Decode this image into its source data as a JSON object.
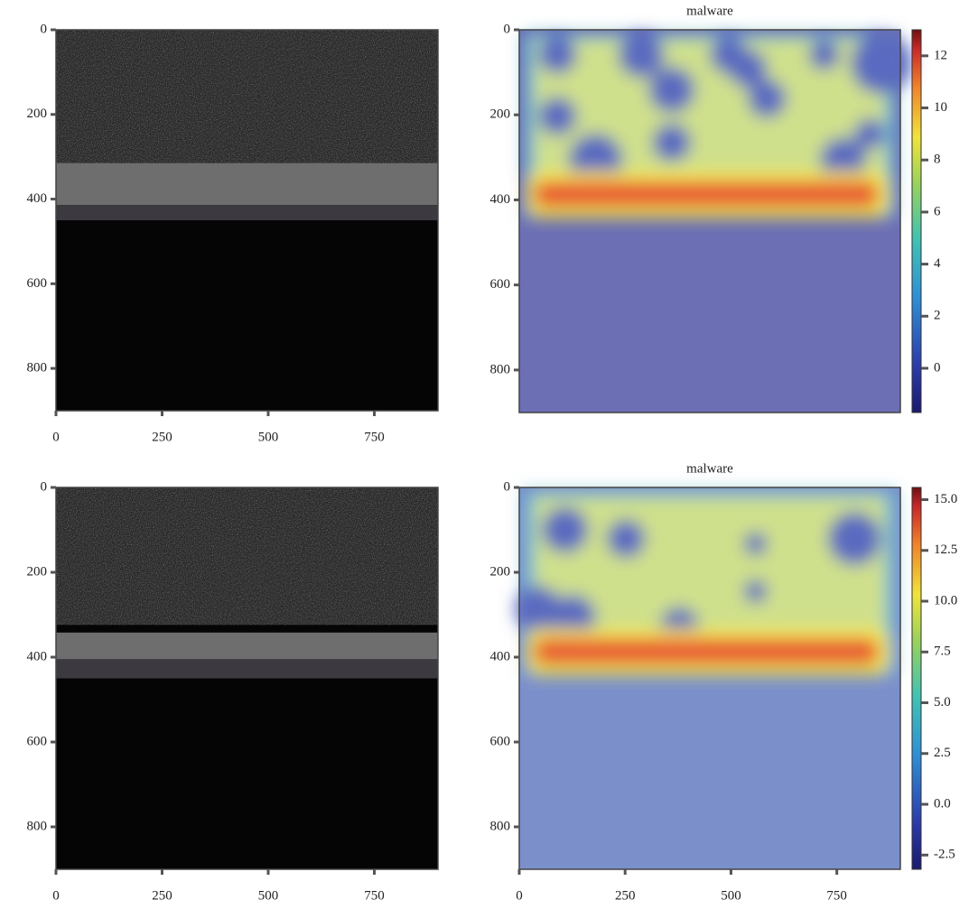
{
  "chart_data": [
    {
      "type": "image",
      "xlim": [
        0,
        900
      ],
      "ylim": [
        900,
        0
      ],
      "xticks": [
        0,
        250,
        500,
        750
      ],
      "yticks": [
        0,
        200,
        400,
        600,
        800
      ]
    },
    {
      "type": "heatmap",
      "title": "malware",
      "xlim": [
        0,
        900
      ],
      "ylim": [
        900,
        0
      ],
      "yticks": [
        0,
        200,
        400,
        600,
        800
      ],
      "colorbar": {
        "clim": [
          -1.7,
          13
        ],
        "ticks": [
          0,
          2,
          4,
          6,
          8,
          10,
          12
        ]
      }
    },
    {
      "type": "image",
      "xlim": [
        0,
        900
      ],
      "ylim": [
        900,
        0
      ],
      "xticks": [
        0,
        250,
        500,
        750
      ],
      "yticks": [
        0,
        200,
        400,
        600,
        800
      ]
    },
    {
      "type": "heatmap",
      "title": "malware",
      "xlim": [
        0,
        900
      ],
      "ylim": [
        900,
        0
      ],
      "xticks": [
        0,
        250,
        500,
        750
      ],
      "yticks": [
        0,
        200,
        400,
        600,
        800
      ],
      "colorbar": {
        "clim": [
          -3.2,
          15.6
        ],
        "ticks": [
          -2.5,
          {
            "value": 0,
            "label": "0.0"
          },
          2.5,
          {
            "value": 5,
            "label": "5.0"
          },
          7.5,
          {
            "value": 10,
            "label": "10.0"
          },
          12.5,
          {
            "value": 15,
            "label": "15.0"
          }
        ]
      }
    }
  ]
}
